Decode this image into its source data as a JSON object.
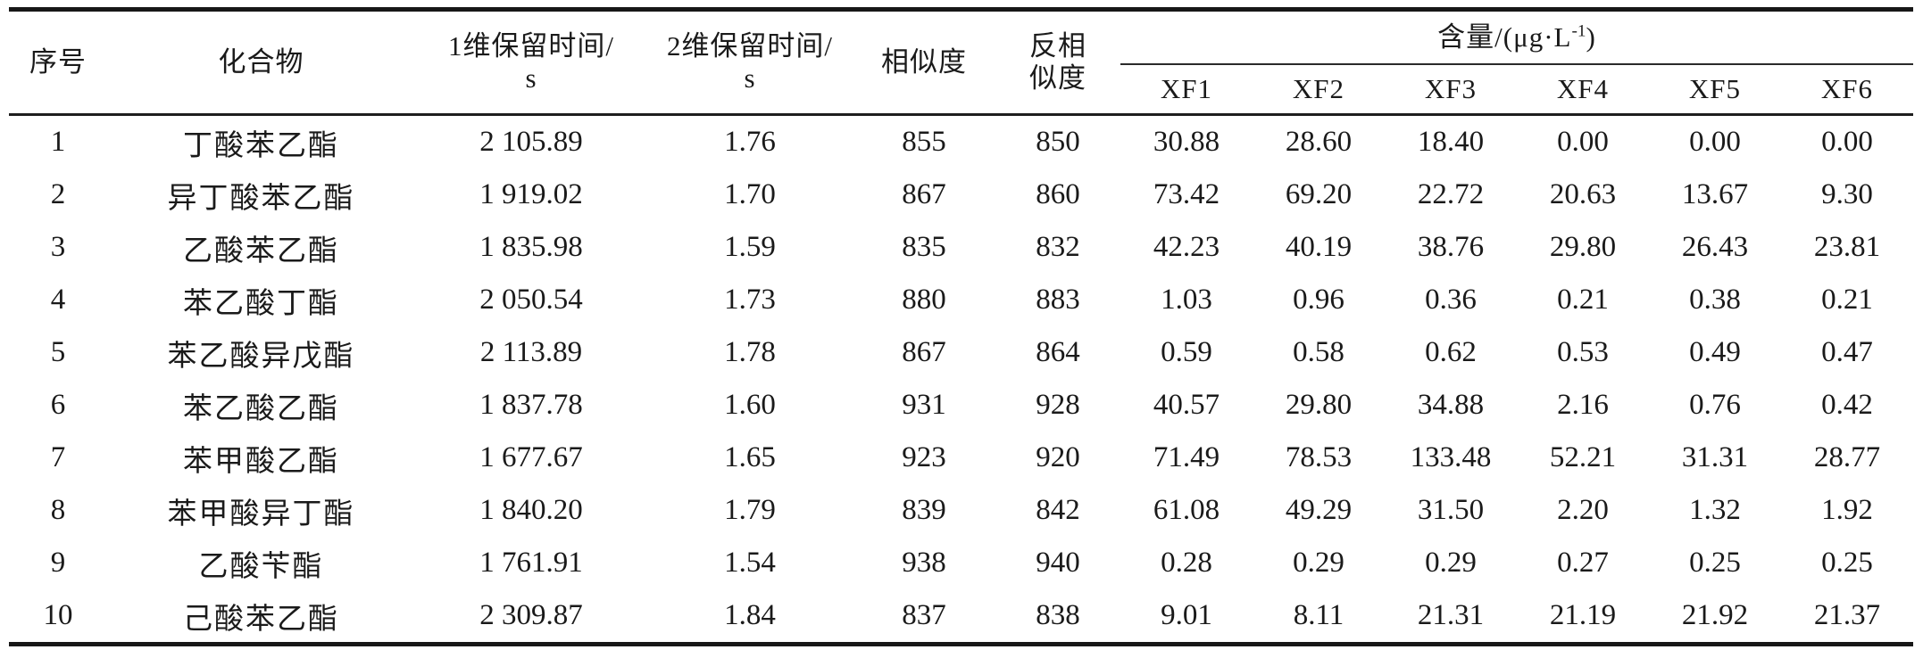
{
  "table": {
    "columns": {
      "index": "序号",
      "compound": "化合物",
      "rt1": "1维保留时间/\ns",
      "rt2": "2维保留时间/\ns",
      "similarity": "相似度",
      "reverse_similarity": "反相\n似度",
      "content_group": {
        "prefix": "含量/(μg·L",
        "sup": "-1",
        "suffix": ")"
      },
      "samples": [
        "XF1",
        "XF2",
        "XF3",
        "XF4",
        "XF5",
        "XF6"
      ]
    },
    "rows": [
      {
        "index": "1",
        "compound": "丁酸苯乙酯",
        "rt1": "2 105.89",
        "rt2": "1.76",
        "sim": "855",
        "rsim": "850",
        "values": [
          "30.88",
          "28.60",
          "18.40",
          "0.00",
          "0.00",
          "0.00"
        ]
      },
      {
        "index": "2",
        "compound": "异丁酸苯乙酯",
        "rt1": "1 919.02",
        "rt2": "1.70",
        "sim": "867",
        "rsim": "860",
        "values": [
          "73.42",
          "69.20",
          "22.72",
          "20.63",
          "13.67",
          "9.30"
        ]
      },
      {
        "index": "3",
        "compound": "乙酸苯乙酯",
        "rt1": "1 835.98",
        "rt2": "1.59",
        "sim": "835",
        "rsim": "832",
        "values": [
          "42.23",
          "40.19",
          "38.76",
          "29.80",
          "26.43",
          "23.81"
        ]
      },
      {
        "index": "4",
        "compound": "苯乙酸丁酯",
        "rt1": "2 050.54",
        "rt2": "1.73",
        "sim": "880",
        "rsim": "883",
        "values": [
          "1.03",
          "0.96",
          "0.36",
          "0.21",
          "0.38",
          "0.21"
        ]
      },
      {
        "index": "5",
        "compound": "苯乙酸异戊酯",
        "rt1": "2 113.89",
        "rt2": "1.78",
        "sim": "867",
        "rsim": "864",
        "values": [
          "0.59",
          "0.58",
          "0.62",
          "0.53",
          "0.49",
          "0.47"
        ]
      },
      {
        "index": "6",
        "compound": "苯乙酸乙酯",
        "rt1": "1 837.78",
        "rt2": "1.60",
        "sim": "931",
        "rsim": "928",
        "values": [
          "40.57",
          "29.80",
          "34.88",
          "2.16",
          "0.76",
          "0.42"
        ]
      },
      {
        "index": "7",
        "compound": "苯甲酸乙酯",
        "rt1": "1 677.67",
        "rt2": "1.65",
        "sim": "923",
        "rsim": "920",
        "values": [
          "71.49",
          "78.53",
          "133.48",
          "52.21",
          "31.31",
          "28.77"
        ]
      },
      {
        "index": "8",
        "compound": "苯甲酸异丁酯",
        "rt1": "1 840.20",
        "rt2": "1.79",
        "sim": "839",
        "rsim": "842",
        "values": [
          "61.08",
          "49.29",
          "31.50",
          "2.20",
          "1.32",
          "1.92"
        ]
      },
      {
        "index": "9",
        "compound": "乙酸苄酯",
        "rt1": "1 761.91",
        "rt2": "1.54",
        "sim": "938",
        "rsim": "940",
        "values": [
          "0.28",
          "0.29",
          "0.29",
          "0.27",
          "0.25",
          "0.25"
        ]
      },
      {
        "index": "10",
        "compound": "己酸苯乙酯",
        "rt1": "2 309.87",
        "rt2": "1.84",
        "sim": "837",
        "rsim": "838",
        "values": [
          "9.01",
          "8.11",
          "21.31",
          "21.19",
          "21.92",
          "21.37"
        ]
      }
    ]
  }
}
